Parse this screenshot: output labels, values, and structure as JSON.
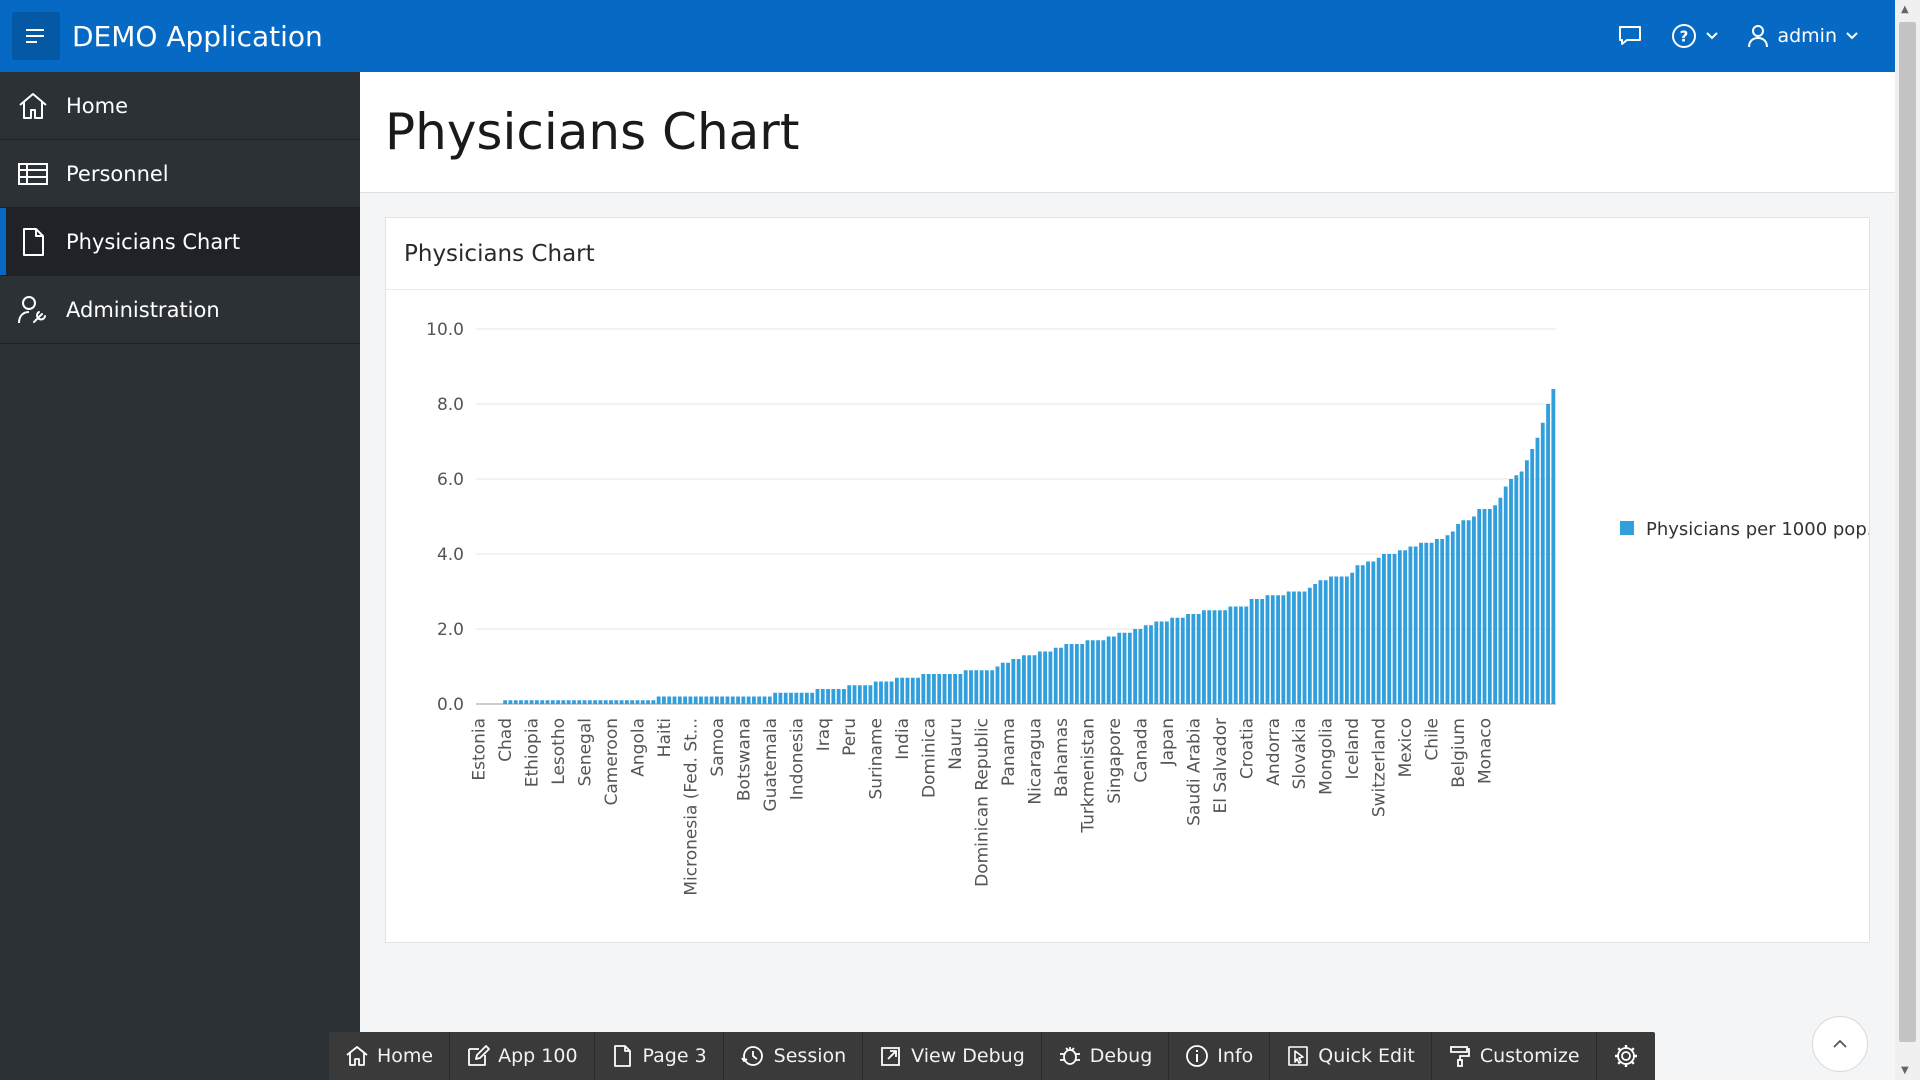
{
  "header": {
    "app_title": "DEMO Application",
    "user": "admin",
    "icons": [
      "menu-icon",
      "chat-icon",
      "help-icon",
      "user-icon"
    ]
  },
  "sidebar": {
    "items": [
      {
        "label": "Home",
        "icon": "home-icon"
      },
      {
        "label": "Personnel",
        "icon": "table-icon"
      },
      {
        "label": "Physicians Chart",
        "icon": "document-icon",
        "active": true
      },
      {
        "label": "Administration",
        "icon": "user-wrench-icon"
      }
    ]
  },
  "page": {
    "title": "Physicians Chart",
    "region_title": "Physicians Chart"
  },
  "chart_data": {
    "type": "bar",
    "ylim": [
      0,
      10
    ],
    "yticks": [
      "0.0",
      "2.0",
      "4.0",
      "6.0",
      "8.0",
      "10.0"
    ],
    "grid": true,
    "legend_position": "right",
    "series": [
      {
        "name": "Physicians per 1000 pop.",
        "color": "#309fdb"
      }
    ],
    "visible_labels": [
      "Estonia",
      "Chad",
      "Ethiopia",
      "Lesotho",
      "Senegal",
      "Cameroon",
      "Angola",
      "Haiti",
      "Micronesia (Fed. St...",
      "Samoa",
      "Botswana",
      "Guatemala",
      "Indonesia",
      "Iraq",
      "Peru",
      "Suriname",
      "India",
      "Dominica",
      "Nauru",
      "Dominican Republic",
      "Panama",
      "Nicaragua",
      "Bahamas",
      "Turkmenistan",
      "Singapore",
      "Canada",
      "Japan",
      "Saudi Arabia",
      "El Salvador",
      "Croatia",
      "Andorra",
      "Slovakia",
      "Mongolia",
      "Iceland",
      "Switzerland",
      "Mexico",
      "Chile",
      "Belgium",
      "Monaco"
    ],
    "values": [
      0.0,
      0.0,
      0.0,
      0.0,
      0.0,
      0.1,
      0.1,
      0.1,
      0.1,
      0.1,
      0.1,
      0.1,
      0.1,
      0.1,
      0.1,
      0.1,
      0.1,
      0.1,
      0.1,
      0.1,
      0.1,
      0.1,
      0.1,
      0.1,
      0.1,
      0.1,
      0.1,
      0.1,
      0.1,
      0.1,
      0.1,
      0.1,
      0.1,
      0.1,
      0.2,
      0.2,
      0.2,
      0.2,
      0.2,
      0.2,
      0.2,
      0.2,
      0.2,
      0.2,
      0.2,
      0.2,
      0.2,
      0.2,
      0.2,
      0.2,
      0.2,
      0.2,
      0.2,
      0.2,
      0.2,
      0.2,
      0.3,
      0.3,
      0.3,
      0.3,
      0.3,
      0.3,
      0.3,
      0.3,
      0.4,
      0.4,
      0.4,
      0.4,
      0.4,
      0.4,
      0.5,
      0.5,
      0.5,
      0.5,
      0.5,
      0.6,
      0.6,
      0.6,
      0.6,
      0.7,
      0.7,
      0.7,
      0.7,
      0.7,
      0.8,
      0.8,
      0.8,
      0.8,
      0.8,
      0.8,
      0.8,
      0.8,
      0.9,
      0.9,
      0.9,
      0.9,
      0.9,
      0.9,
      1.0,
      1.1,
      1.1,
      1.2,
      1.2,
      1.3,
      1.3,
      1.3,
      1.4,
      1.4,
      1.4,
      1.5,
      1.5,
      1.6,
      1.6,
      1.6,
      1.6,
      1.7,
      1.7,
      1.7,
      1.7,
      1.8,
      1.8,
      1.9,
      1.9,
      1.9,
      2.0,
      2.0,
      2.1,
      2.1,
      2.2,
      2.2,
      2.2,
      2.3,
      2.3,
      2.3,
      2.4,
      2.4,
      2.4,
      2.5,
      2.5,
      2.5,
      2.5,
      2.5,
      2.6,
      2.6,
      2.6,
      2.6,
      2.8,
      2.8,
      2.8,
      2.9,
      2.9,
      2.9,
      2.9,
      3.0,
      3.0,
      3.0,
      3.0,
      3.1,
      3.2,
      3.3,
      3.3,
      3.4,
      3.4,
      3.4,
      3.4,
      3.5,
      3.7,
      3.7,
      3.8,
      3.8,
      3.9,
      4.0,
      4.0,
      4.0,
      4.1,
      4.1,
      4.2,
      4.2,
      4.3,
      4.3,
      4.3,
      4.4,
      4.4,
      4.5,
      4.6,
      4.8,
      4.9,
      4.9,
      5.0,
      5.2,
      5.2,
      5.2,
      5.3,
      5.5,
      5.8,
      6.0,
      6.1,
      6.2,
      6.5,
      6.8,
      7.1,
      7.5,
      8.0,
      8.4
    ]
  },
  "devbar": {
    "items": [
      {
        "label": "Home",
        "icon": "home-icon"
      },
      {
        "label": "App 100",
        "icon": "edit-icon"
      },
      {
        "label": "Page 3",
        "icon": "page-edit-icon"
      },
      {
        "label": "Session",
        "icon": "session-icon"
      },
      {
        "label": "View Debug",
        "icon": "external-link-icon"
      },
      {
        "label": "Debug",
        "icon": "bug-icon"
      },
      {
        "label": "Info",
        "icon": "info-icon"
      },
      {
        "label": "Quick Edit",
        "icon": "pointer-icon"
      },
      {
        "label": "Customize",
        "icon": "paint-roller-icon"
      },
      {
        "label": "",
        "icon": "gear-icon"
      }
    ]
  }
}
